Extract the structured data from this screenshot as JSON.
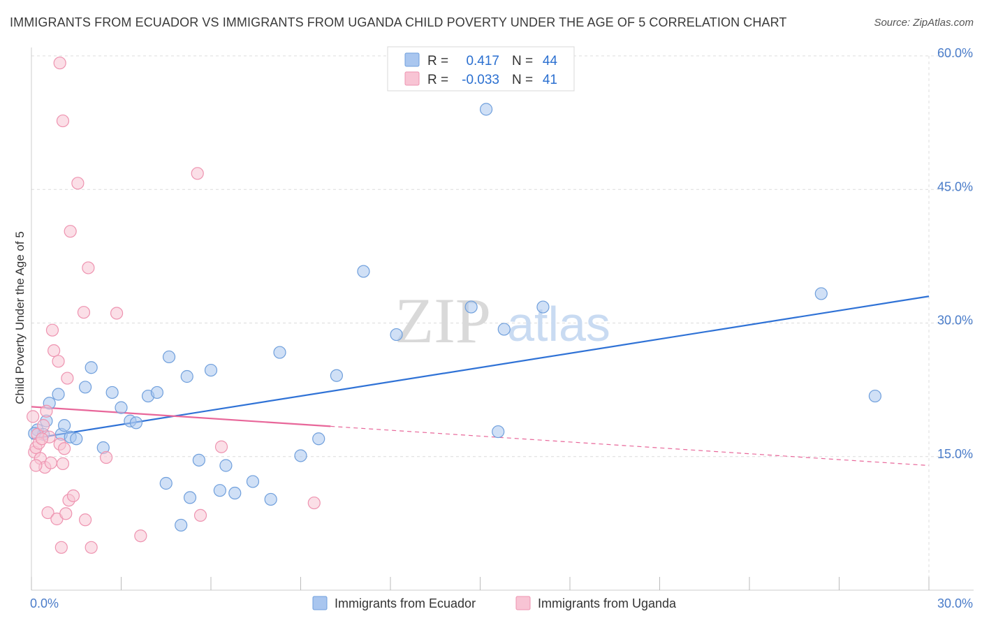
{
  "title": "IMMIGRANTS FROM ECUADOR VS IMMIGRANTS FROM UGANDA CHILD POVERTY UNDER THE AGE OF 5 CORRELATION CHART",
  "source": "Source: ZipAtlas.com",
  "watermark": {
    "zip": "ZIP",
    "atlas": "atlas"
  },
  "chart_data": {
    "type": "scatter",
    "ylabel": "Child Poverty Under the Age of 5",
    "xlim": [
      0,
      30
    ],
    "ylim": [
      0,
      60
    ],
    "y_ticks": [
      15,
      30,
      45,
      60
    ],
    "y_tick_labels": [
      "15.0%",
      "30.0%",
      "45.0%",
      "60.0%"
    ],
    "x_tick_labels": [
      "0.0%",
      "30.0%"
    ],
    "grid": true,
    "legend_position": "top-center",
    "stats": [
      {
        "r_label": "R =",
        "r_value": "0.417",
        "n_label": "N =",
        "n_value": "44"
      },
      {
        "r_label": "R =",
        "r_value": "-0.033",
        "n_label": "N =",
        "n_value": "41"
      }
    ],
    "series": [
      {
        "name": "Immigrants from Ecuador",
        "color": "#a9c6ef",
        "stroke": "#6f9fdc",
        "line_color": "#2f72d6",
        "trend": {
          "x0": 0.0,
          "y0": 17.0,
          "x1": 30.0,
          "y1": 33.0,
          "dashed_to": null
        },
        "points": [
          [
            0.2,
            18.0
          ],
          [
            0.4,
            17.5
          ],
          [
            0.5,
            19.0
          ],
          [
            0.6,
            21.0
          ],
          [
            0.9,
            22.0
          ],
          [
            1.0,
            17.5
          ],
          [
            1.1,
            18.5
          ],
          [
            1.3,
            17.2
          ],
          [
            1.5,
            17.0
          ],
          [
            1.8,
            22.8
          ],
          [
            2.0,
            25.0
          ],
          [
            2.4,
            16.0
          ],
          [
            2.7,
            22.2
          ],
          [
            3.0,
            20.5
          ],
          [
            3.3,
            19.0
          ],
          [
            3.5,
            18.8
          ],
          [
            3.9,
            21.8
          ],
          [
            4.2,
            22.2
          ],
          [
            4.5,
            12.0
          ],
          [
            4.6,
            26.2
          ],
          [
            5.0,
            7.3
          ],
          [
            5.2,
            24.0
          ],
          [
            5.3,
            10.4
          ],
          [
            5.6,
            14.6
          ],
          [
            6.0,
            24.7
          ],
          [
            6.3,
            11.2
          ],
          [
            6.5,
            14.0
          ],
          [
            6.8,
            10.9
          ],
          [
            7.4,
            12.2
          ],
          [
            8.0,
            10.2
          ],
          [
            8.3,
            26.7
          ],
          [
            9.0,
            15.1
          ],
          [
            9.6,
            17.0
          ],
          [
            10.2,
            24.1
          ],
          [
            11.1,
            35.8
          ],
          [
            12.2,
            28.7
          ],
          [
            14.7,
            31.8
          ],
          [
            15.2,
            54.0
          ],
          [
            15.6,
            17.8
          ],
          [
            15.8,
            29.3
          ],
          [
            17.1,
            31.8
          ],
          [
            26.4,
            33.3
          ],
          [
            28.2,
            21.8
          ],
          [
            0.1,
            17.6
          ]
        ]
      },
      {
        "name": "Immigrants from Uganda",
        "color": "#f8c4d4",
        "stroke": "#ee93b0",
        "line_color": "#e8679a",
        "trend": {
          "x0": 0.0,
          "y0": 20.6,
          "x1": 10.0,
          "y1": 18.4,
          "dashed_to": [
            30.0,
            14.0
          ]
        },
        "points": [
          [
            0.05,
            19.5
          ],
          [
            0.1,
            15.5
          ],
          [
            0.15,
            16.0
          ],
          [
            0.2,
            17.5
          ],
          [
            0.25,
            16.5
          ],
          [
            0.3,
            14.8
          ],
          [
            0.4,
            18.5
          ],
          [
            0.45,
            13.8
          ],
          [
            0.5,
            20.1
          ],
          [
            0.55,
            8.7
          ],
          [
            0.6,
            17.2
          ],
          [
            0.65,
            14.3
          ],
          [
            0.7,
            29.2
          ],
          [
            0.75,
            26.9
          ],
          [
            0.85,
            8.0
          ],
          [
            0.9,
            25.7
          ],
          [
            0.95,
            16.4
          ],
          [
            1.0,
            4.8
          ],
          [
            1.05,
            14.2
          ],
          [
            1.1,
            15.9
          ],
          [
            1.15,
            8.6
          ],
          [
            1.2,
            23.8
          ],
          [
            1.25,
            10.1
          ],
          [
            1.3,
            40.3
          ],
          [
            1.4,
            10.6
          ],
          [
            1.55,
            45.7
          ],
          [
            1.75,
            31.2
          ],
          [
            1.8,
            7.9
          ],
          [
            1.9,
            36.2
          ],
          [
            2.0,
            4.8
          ],
          [
            2.5,
            14.9
          ],
          [
            2.85,
            31.1
          ],
          [
            3.65,
            6.1
          ],
          [
            5.55,
            46.8
          ],
          [
            5.65,
            8.4
          ],
          [
            6.35,
            16.1
          ],
          [
            9.45,
            9.8
          ],
          [
            0.95,
            59.2
          ],
          [
            1.05,
            52.7
          ],
          [
            0.35,
            17.0
          ],
          [
            0.15,
            14.0
          ]
        ]
      }
    ]
  }
}
